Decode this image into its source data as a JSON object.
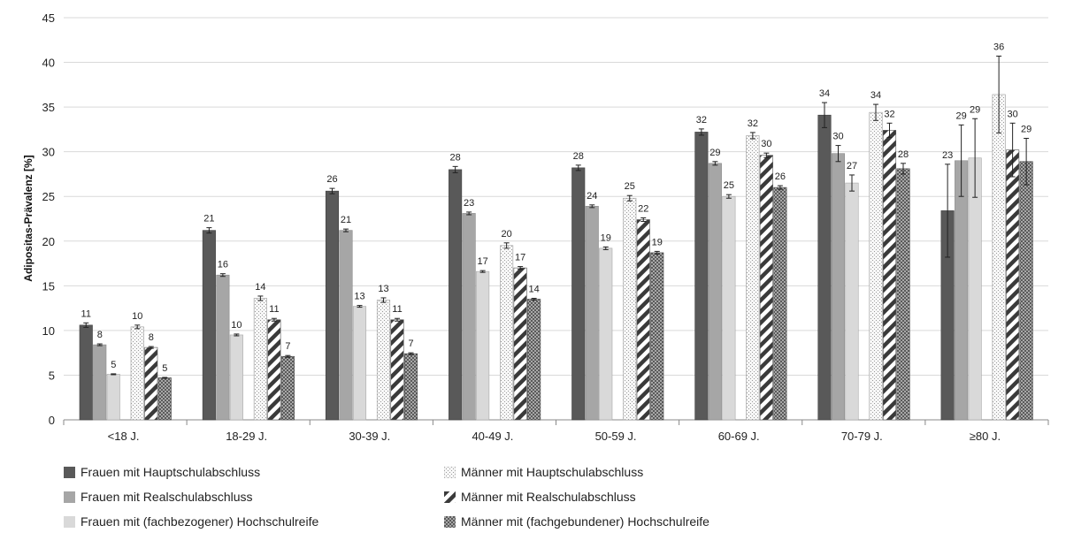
{
  "chart_data": {
    "type": "bar",
    "ylabel": "Adipositas-Prävalenz [%]",
    "ylim": [
      0,
      45
    ],
    "yticks": [
      0,
      5,
      10,
      15,
      20,
      25,
      30,
      35,
      40,
      45
    ],
    "grid": true,
    "legend_position": "bottom",
    "categories": [
      "<18 J.",
      "18-29 J.",
      "30-39 J.",
      "40-49 J.",
      "50-59 J.",
      "60-69 J.",
      "70-79 J.",
      "≥80 J."
    ],
    "series": [
      {
        "name": "Frauen mit Hauptschulabschluss",
        "pattern": "solid-dark",
        "color": "#595959",
        "values": [
          10.6,
          21.2,
          25.6,
          28.0,
          28.2,
          32.2,
          34.1,
          23.4
        ],
        "err": [
          0.25,
          0.3,
          0.3,
          0.35,
          0.3,
          0.35,
          1.4,
          5.2
        ],
        "labels": [
          "11",
          "21",
          "26",
          "28",
          "28",
          "32",
          "34",
          "23"
        ]
      },
      {
        "name": "Frauen mit Realschulabschluss",
        "pattern": "solid-medium",
        "color": "#a6a6a6",
        "values": [
          8.4,
          16.2,
          21.2,
          23.1,
          23.9,
          28.7,
          29.8,
          29.0
        ],
        "err": [
          0.1,
          0.15,
          0.15,
          0.15,
          0.15,
          0.2,
          0.9,
          4.0
        ],
        "labels": [
          "8",
          "16",
          "21",
          "23",
          "24",
          "29",
          "30",
          "29"
        ]
      },
      {
        "name": "Frauen mit (fachbezogener) Hochschulreife",
        "pattern": "solid-light",
        "color": "#d9d9d9",
        "values": [
          5.1,
          9.5,
          12.7,
          16.6,
          19.2,
          25.0,
          26.5,
          29.3
        ],
        "err": [
          0.05,
          0.1,
          0.1,
          0.1,
          0.15,
          0.2,
          0.9,
          4.4
        ],
        "labels": [
          "5",
          "10",
          "13",
          "17",
          "19",
          "25",
          "27",
          "29"
        ]
      },
      {
        "name": "Männer mit Hauptschulabschluss",
        "pattern": "dots",
        "color": "#f2f2f2",
        "values": [
          10.4,
          13.6,
          13.4,
          19.5,
          24.8,
          31.8,
          34.4,
          36.4
        ],
        "err": [
          0.2,
          0.25,
          0.25,
          0.3,
          0.3,
          0.35,
          0.9,
          4.3
        ],
        "labels": [
          "10",
          "14",
          "13",
          "20",
          "25",
          "32",
          "34",
          "36"
        ]
      },
      {
        "name": "Männer mit Realschulabschluss",
        "pattern": "diagonal",
        "color": "#404040",
        "values": [
          8.1,
          11.2,
          11.2,
          17.0,
          22.4,
          29.6,
          32.4,
          30.2
        ],
        "err": [
          0.1,
          0.15,
          0.15,
          0.15,
          0.2,
          0.25,
          0.8,
          3.0
        ],
        "labels": [
          "8",
          "11",
          "11",
          "17",
          "22",
          "30",
          "32",
          "30"
        ]
      },
      {
        "name": "Männer mit (fachgebundener) Hochschulreife",
        "pattern": "checker",
        "color": "#808080",
        "values": [
          4.7,
          7.1,
          7.4,
          13.5,
          18.7,
          26.0,
          28.1,
          28.9
        ],
        "err": [
          0.05,
          0.1,
          0.1,
          0.1,
          0.15,
          0.2,
          0.6,
          2.6
        ],
        "labels": [
          "5",
          "7",
          "7",
          "14",
          "19",
          "26",
          "28",
          "29"
        ]
      }
    ]
  }
}
